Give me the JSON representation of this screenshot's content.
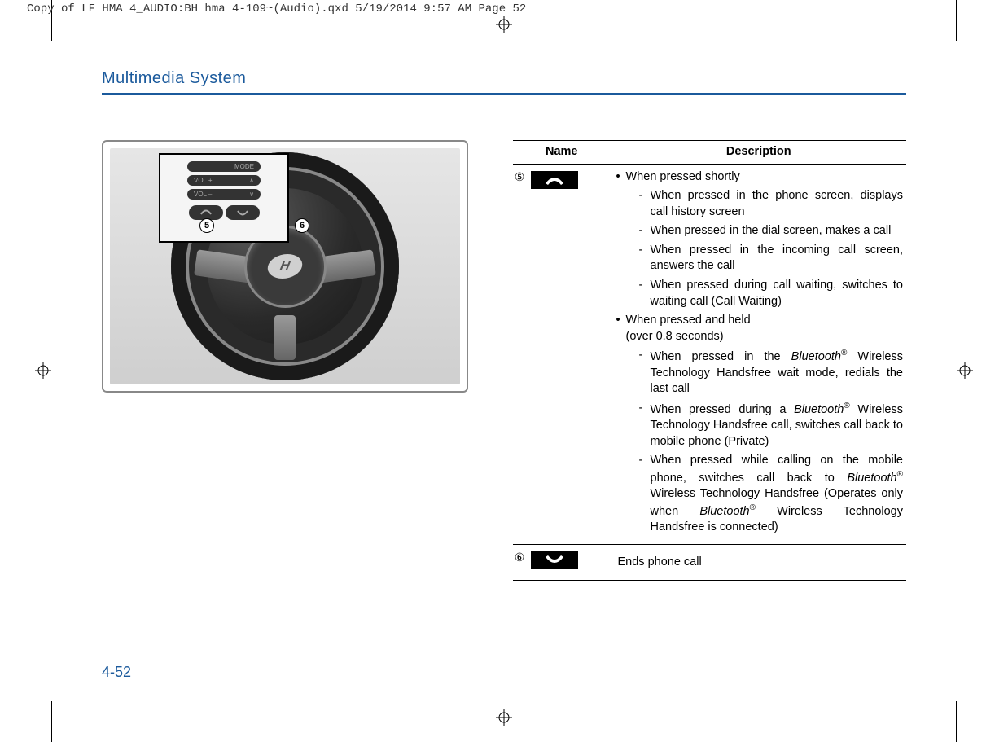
{
  "header_info": "Copy of LF HMA 4_AUDIO:BH hma 4-109~(Audio).qxd  5/19/2014  9:57 AM  Page 52",
  "section_title": "Multimedia System",
  "page_number": "4-52",
  "figure": {
    "inset_labels": {
      "mode": "MODE",
      "vol_up": "VOL +",
      "vol_dn": "VOL –"
    },
    "callouts": [
      "5",
      "6"
    ],
    "logo_letter": "H"
  },
  "table": {
    "headers": {
      "name": "Name",
      "description": "Description"
    },
    "rows": [
      {
        "num": "⑤",
        "icon": "phone-pickup-icon",
        "desc_type": "nested",
        "short_press_label": "When pressed shortly",
        "short_press_items": [
          "When pressed in the phone screen, displays call history screen",
          "When pressed in the dial screen, makes a call",
          "When pressed in the incoming call screen, answers the call",
          "When pressed during call waiting, switches to waiting call (Call Waiting)"
        ],
        "long_press_label_line1": "When pressed and held",
        "long_press_label_line2": "(over 0.8 seconds)",
        "long_press_items_html": [
          "When pressed in the <span class=\"bt\">Bluetooth</span><span class=\"reg\">®</span> Wireless Technology Handsfree wait mode, redials the last call",
          "When pressed during a <span class=\"bt\">Bluetooth</span><span class=\"reg\">®</span> Wireless Technology Handsfree call, switches call back to mobile phone (Private)",
          "When pressed while calling on the mobile phone, switches call back to <span class=\"bt\">Bluetooth</span><span class=\"reg\">®</span> Wireless Technology Handsfree (Operates only when <span class=\"bt\">Bluetooth</span><span class=\"reg\">®</span> Wireless Technology Handsfree is connected)"
        ]
      },
      {
        "num": "⑥",
        "icon": "phone-hangup-icon",
        "desc_type": "simple",
        "desc": "Ends phone call"
      }
    ]
  }
}
